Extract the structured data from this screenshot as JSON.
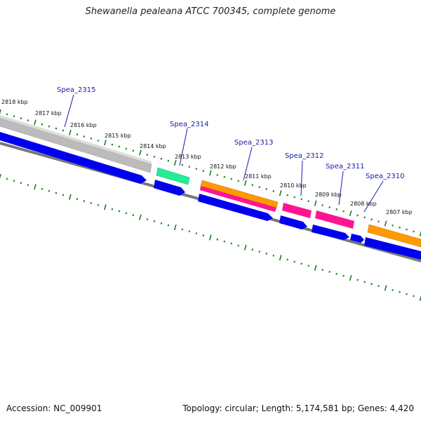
{
  "title": "Shewanella pealeana ATCC 700345, complete genome",
  "accession": "Accession: NC_009901",
  "stats": "Topology: circular; Length: 5,174,581 bp; Genes: 4,420",
  "colors": {
    "backbone": "#777777",
    "tick": "#1e7d1e",
    "gene_blue": "#0000ee",
    "gene_gray": "#bbbbbb",
    "gene_teal": "#22ee99",
    "gene_orange": "#ff9900",
    "gene_pink": "#ff1493",
    "label": "#1a1aaa"
  },
  "scale_labels": [
    "2818 kbp",
    "2817 kbp",
    "2816 kbp",
    "2815 kbp",
    "2814 kbp",
    "2813 kbp",
    "2812 kbp",
    "2811 kbp",
    "2810 kbp",
    "2809 kbp",
    "2808 kbp",
    "2807 kbp"
  ],
  "gene_labels": [
    "Spea_2315",
    "Spea_2314",
    "Spea_2313",
    "Spea_2312",
    "Spea_2311",
    "Spea_2310"
  ]
}
